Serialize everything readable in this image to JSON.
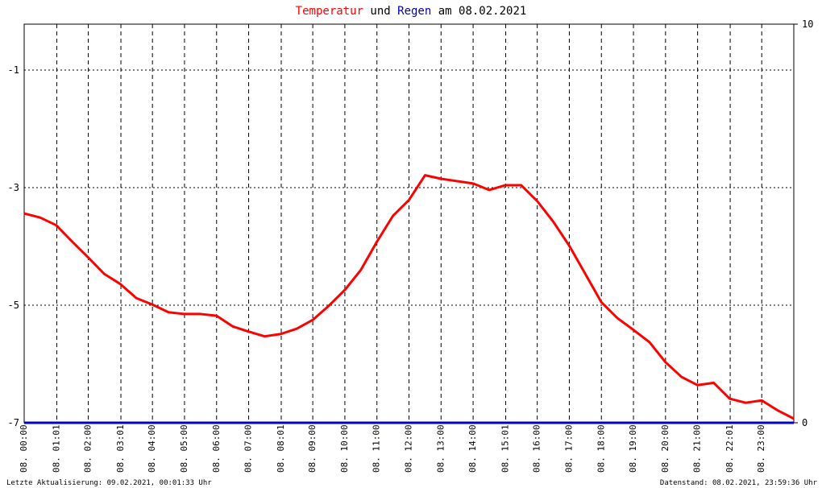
{
  "chart_data": {
    "type": "line",
    "title_connector": "und",
    "title_suffix": "am 08.02.2021",
    "footer_left": "Letzte Aktualisierung: 09.02.2021, 00:01:33 Uhr",
    "footer_right": "Datenstand: 08.02.2021, 23:59:36 Uhr",
    "xlim": [
      0,
      24
    ],
    "xticks": [
      {
        "value": 0,
        "label": "08. 00:00"
      },
      {
        "value": 1.0167,
        "label": "08. 01:01"
      },
      {
        "value": 2,
        "label": "08. 02:00"
      },
      {
        "value": 3.0167,
        "label": "08. 03:01"
      },
      {
        "value": 4,
        "label": "08. 04:00"
      },
      {
        "value": 5,
        "label": "08. 05:00"
      },
      {
        "value": 6,
        "label": "08. 06:00"
      },
      {
        "value": 7,
        "label": "08. 07:00"
      },
      {
        "value": 8.0167,
        "label": "08. 08:01"
      },
      {
        "value": 9,
        "label": "08. 09:00"
      },
      {
        "value": 10,
        "label": "08. 10:00"
      },
      {
        "value": 11,
        "label": "08. 11:00"
      },
      {
        "value": 12,
        "label": "08. 12:00"
      },
      {
        "value": 13,
        "label": "08. 13:00"
      },
      {
        "value": 14,
        "label": "08. 14:00"
      },
      {
        "value": 15.0167,
        "label": "08. 15:01"
      },
      {
        "value": 16,
        "label": "08. 16:00"
      },
      {
        "value": 17,
        "label": "08. 17:00"
      },
      {
        "value": 18,
        "label": "08. 18:00"
      },
      {
        "value": 19,
        "label": "08. 19:00"
      },
      {
        "value": 20,
        "label": "08. 20:00"
      },
      {
        "value": 21,
        "label": "08. 21:00"
      },
      {
        "value": 22.0167,
        "label": "08. 22:01"
      },
      {
        "value": 23,
        "label": "08. 23:00"
      }
    ],
    "ylim": [
      -7,
      -0.22
    ],
    "yticks": [
      -7,
      -5,
      -3,
      -1
    ],
    "y2lim": [
      0,
      10
    ],
    "y2ticks": [
      0,
      10
    ],
    "grid": true,
    "series": [
      {
        "name": "Temperatur",
        "color": "#ff0000",
        "x": [
          0,
          0.5,
          1,
          1.5,
          2,
          2.5,
          3,
          3.5,
          4,
          4.5,
          5,
          5.5,
          6,
          6.5,
          7,
          7.5,
          8,
          8.5,
          9,
          9.5,
          10,
          10.5,
          11,
          11.5,
          12,
          12.5,
          13,
          13.5,
          14,
          14.5,
          15,
          15.5,
          16,
          16.5,
          17,
          17.5,
          18,
          18.5,
          19,
          19.5,
          20,
          20.5,
          21,
          21.5,
          22,
          22.5,
          23,
          23.5,
          24
        ],
        "values": [
          -3.44,
          -3.51,
          -3.64,
          -3.92,
          -4.19,
          -4.47,
          -4.64,
          -4.88,
          -4.99,
          -5.12,
          -5.15,
          -5.15,
          -5.18,
          -5.36,
          -5.45,
          -5.53,
          -5.49,
          -5.4,
          -5.25,
          -5.01,
          -4.74,
          -4.4,
          -3.92,
          -3.48,
          -3.21,
          -2.79,
          -2.85,
          -2.89,
          -2.93,
          -3.04,
          -2.96,
          -2.96,
          -3.23,
          -3.58,
          -3.99,
          -4.47,
          -4.95,
          -5.22,
          -5.42,
          -5.63,
          -5.97,
          -6.22,
          -6.36,
          -6.32,
          -6.59,
          -6.66,
          -6.62,
          -6.79,
          -6.93
        ]
      },
      {
        "name": "Regen",
        "color": "#0000cc",
        "axis": "y2",
        "x": [
          0,
          24
        ],
        "values": [
          0,
          0
        ]
      }
    ]
  }
}
